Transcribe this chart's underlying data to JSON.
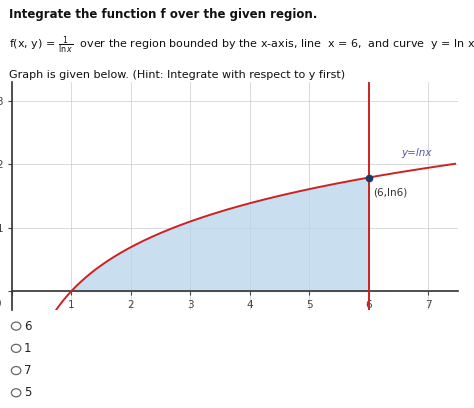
{
  "title_bold": "Integrate the function f over the given region.",
  "formula_rest": " over the region bounded by the x-axis, line  x = 6,  and curve  y = ln x",
  "hint_text": "Graph is given below. (Hint: Integrate with respect to y first)",
  "xlim": [
    0,
    7.5
  ],
  "ylim": [
    -0.3,
    3.3
  ],
  "xticks": [
    0,
    1,
    2,
    3,
    4,
    5,
    6,
    7
  ],
  "yticks": [
    0,
    1,
    2,
    3
  ],
  "curve_color": "#cc2222",
  "vline_color": "#cc2222",
  "vline_x": 6,
  "fill_color": "#b8d4ea",
  "fill_alpha": 0.75,
  "point_x": 6,
  "point_y": 1.791759,
  "point_color": "#1a3a6a",
  "label_y_eq_lnx": "y=lnx",
  "label_point": "(6,ln6)",
  "label_color": "#5555aa",
  "choices": [
    "6",
    "1",
    "7",
    "5"
  ],
  "grid_color": "#cccccc",
  "axis_color": "#333333",
  "tick_color": "#444444",
  "background_color": "#ffffff",
  "text_fontsize": 8.0,
  "title_fontsize": 8.5
}
